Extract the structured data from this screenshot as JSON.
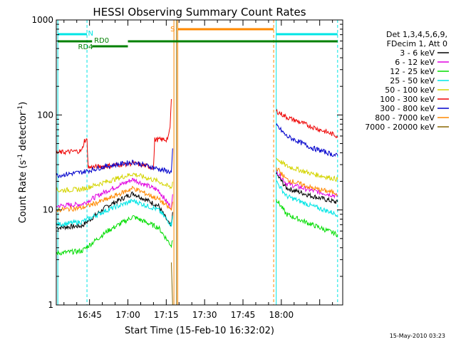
{
  "chart_data": {
    "type": "line",
    "title": "HESSI Observing Summary Count Rates",
    "xlabel": "Start Time (15-Feb-10 16:32:02)",
    "ylabel_main": "Count Rate (s",
    "ylabel_sup1": "-1",
    "ylabel_mid": " detector",
    "ylabel_sup2": "-1",
    "ylabel_end": ")",
    "y_scale": "log",
    "ylim": [
      1,
      1000
    ],
    "xlim_minutes": [
      0,
      112
    ],
    "x_ticks": [
      {
        "m": 13,
        "label": "16:45"
      },
      {
        "m": 28,
        "label": "17:00"
      },
      {
        "m": 43,
        "label": "17:15"
      },
      {
        "m": 58,
        "label": "17:30"
      },
      {
        "m": 73,
        "label": "17:45"
      },
      {
        "m": 88,
        "label": "18:00"
      }
    ],
    "y_ticks": [
      {
        "v": 1,
        "label": "1"
      },
      {
        "v": 10,
        "label": "10"
      },
      {
        "v": 100,
        "label": "100"
      },
      {
        "v": 1000,
        "label": "1000"
      }
    ],
    "legend_header": [
      "Det 1,3,4,5,6,9,",
      "FDecim 1, Att 0"
    ],
    "legend_position": "right",
    "series": [
      {
        "name": "3 - 6 keV",
        "color": "#000000",
        "points": [
          [
            0,
            6.5
          ],
          [
            10,
            6.8
          ],
          [
            20,
            11
          ],
          [
            30,
            15
          ],
          [
            40,
            11
          ],
          [
            45,
            6.5
          ],
          [
            45.5,
            10
          ],
          [
            86,
            24
          ],
          [
            90,
            17
          ],
          [
            100,
            14
          ],
          [
            110,
            12
          ]
        ]
      },
      {
        "name": "6 - 12 keV",
        "color": "#e000e0",
        "points": [
          [
            0,
            11
          ],
          [
            10,
            11.5
          ],
          [
            20,
            16
          ],
          [
            30,
            21
          ],
          [
            40,
            16
          ],
          [
            45,
            10.5
          ],
          [
            45.5,
            14
          ],
          [
            86,
            26
          ],
          [
            90,
            19
          ],
          [
            100,
            16
          ],
          [
            110,
            14
          ]
        ]
      },
      {
        "name": "12 - 25 keV",
        "color": "#00dd00",
        "points": [
          [
            0,
            3.5
          ],
          [
            10,
            3.7
          ],
          [
            20,
            6
          ],
          [
            30,
            8.5
          ],
          [
            40,
            6.5
          ],
          [
            45,
            4.2
          ],
          [
            45.5,
            5
          ],
          [
            86,
            13
          ],
          [
            90,
            9
          ],
          [
            100,
            7
          ],
          [
            110,
            5.5
          ]
        ]
      },
      {
        "name": "25 - 50 keV",
        "color": "#00e5e5",
        "points": [
          [
            0,
            7
          ],
          [
            10,
            7.5
          ],
          [
            20,
            10
          ],
          [
            30,
            12.5
          ],
          [
            40,
            10
          ],
          [
            45,
            7
          ],
          [
            45.5,
            9
          ],
          [
            86,
            20
          ],
          [
            90,
            14
          ],
          [
            100,
            11
          ],
          [
            110,
            9
          ]
        ]
      },
      {
        "name": "50 - 100 keV",
        "color": "#d4d400",
        "points": [
          [
            0,
            16
          ],
          [
            10,
            16.5
          ],
          [
            20,
            20
          ],
          [
            30,
            24
          ],
          [
            40,
            20
          ],
          [
            45,
            17
          ],
          [
            45.5,
            20
          ],
          [
            86,
            35
          ],
          [
            90,
            29
          ],
          [
            100,
            24
          ],
          [
            110,
            21
          ]
        ]
      },
      {
        "name": "100 - 300 keV",
        "color": "#ee0000",
        "points": [
          [
            0,
            40
          ],
          [
            10,
            42
          ],
          [
            11,
            54
          ],
          [
            12,
            54
          ],
          [
            12.5,
            28
          ],
          [
            20,
            29
          ],
          [
            30,
            31
          ],
          [
            38,
            28
          ],
          [
            38.5,
            55
          ],
          [
            43,
            55
          ],
          [
            44,
            60
          ],
          [
            44.5,
            75
          ],
          [
            45,
            145
          ],
          [
            86,
            110
          ],
          [
            90,
            95
          ],
          [
            100,
            75
          ],
          [
            110,
            60
          ]
        ]
      },
      {
        "name": "300 - 800 keV",
        "color": "#0000cc",
        "points": [
          [
            0,
            23
          ],
          [
            10,
            25
          ],
          [
            20,
            29
          ],
          [
            30,
            32
          ],
          [
            40,
            27
          ],
          [
            45,
            25
          ],
          [
            45.5,
            42
          ],
          [
            86,
            78
          ],
          [
            90,
            60
          ],
          [
            100,
            45
          ],
          [
            110,
            37
          ]
        ]
      },
      {
        "name": "800 - 7000 keV",
        "color": "#ff8800",
        "points": [
          [
            0,
            10
          ],
          [
            10,
            10.5
          ],
          [
            20,
            13
          ],
          [
            30,
            17
          ],
          [
            40,
            13
          ],
          [
            45,
            10
          ],
          [
            45.5,
            12
          ],
          [
            86,
            28
          ],
          [
            90,
            21
          ],
          [
            100,
            17
          ],
          [
            110,
            15
          ]
        ]
      },
      {
        "name": "7000 - 20000 keV",
        "color": "#886600",
        "points": [
          [
            45,
            2.8
          ],
          [
            45.5,
            1
          ],
          [
            47,
            1
          ],
          [
            47,
            1000
          ]
        ]
      }
    ],
    "annotations": {
      "flags": [
        {
          "label": "N",
          "color": "#00e5e5"
        },
        {
          "label": "RD0",
          "color": "#008000"
        },
        {
          "label": "RD4",
          "color": "#008000"
        },
        {
          "label": "S",
          "color": "#ff8800"
        }
      ]
    }
  },
  "footer": {
    "timestamp": "15-May-2010 03:23"
  }
}
